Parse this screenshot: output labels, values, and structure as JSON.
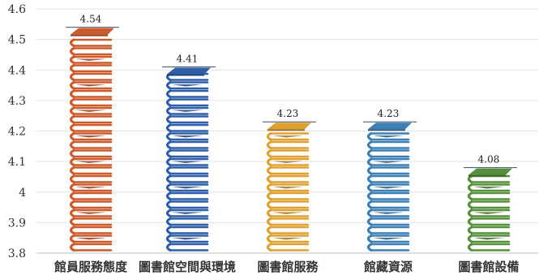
{
  "chart_data": {
    "type": "bar",
    "categories": [
      "館員服務態度",
      "圖書館空間與環境",
      "圖書館服務",
      "館藏資源",
      "圖書館設備"
    ],
    "values": [
      4.54,
      4.41,
      4.23,
      4.23,
      4.08
    ],
    "value_labels": [
      "4.54",
      "4.41",
      "4.23",
      "4.23",
      "4.08"
    ],
    "yticks": [
      "3.8",
      "3.9",
      "4",
      "4.1",
      "4.2",
      "4.3",
      "4.4",
      "4.5",
      "4.6"
    ],
    "ylim": [
      3.8,
      4.6
    ],
    "title": "",
    "xlabel": "",
    "ylabel": "",
    "grid": true,
    "legend": "none",
    "colors": [
      "#cc5a2a",
      "#2e5ea8",
      "#e0a030",
      "#3c7fb5",
      "#55913a"
    ]
  }
}
